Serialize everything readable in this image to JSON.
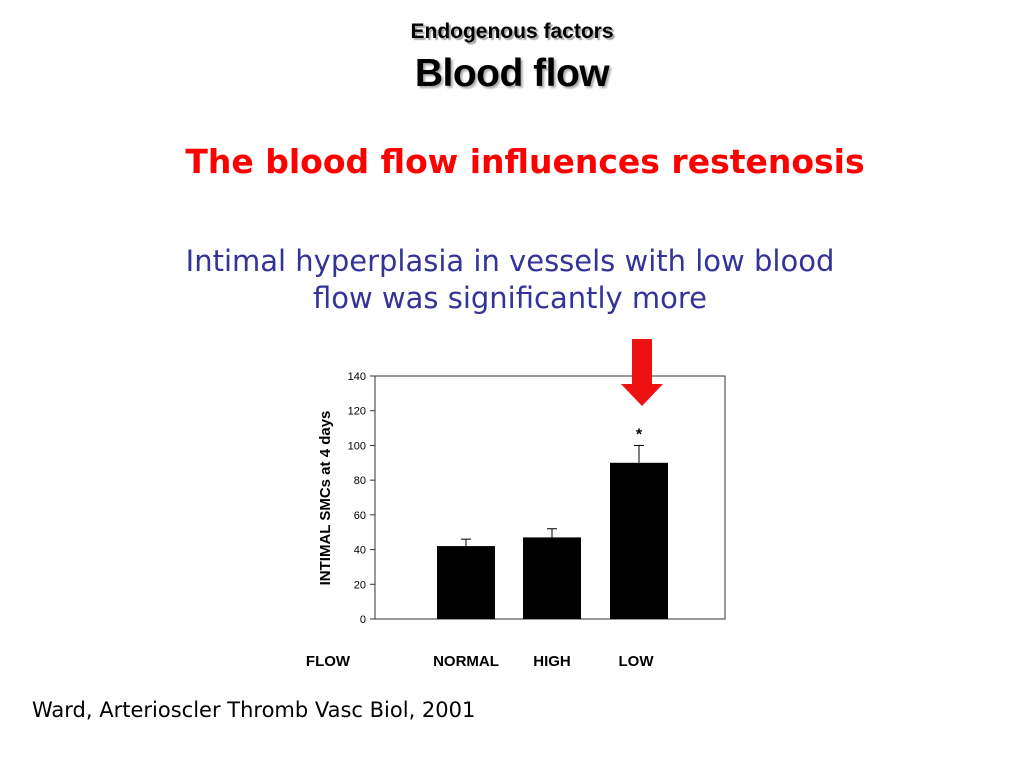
{
  "slide": {
    "supertitle": "Endogenous  factors",
    "title": "Blood flow",
    "headline": "The blood flow influences restenosis",
    "subheadline_line1": "Intimal hyperplasia in vessels with low blood",
    "subheadline_line2": "flow was significantly more",
    "citation": "Ward, Arterioscler Thromb Vasc Biol, 2001"
  },
  "chart_data": {
    "type": "bar",
    "xlabel": "FLOW",
    "ylabel": "INTIMAL SMCs at 4 days",
    "categories": [
      "NORMAL",
      "HIGH",
      "LOW"
    ],
    "values": [
      42,
      47,
      90
    ],
    "error": [
      4,
      5,
      10
    ],
    "ylim": [
      0,
      140
    ],
    "yticks": [
      0,
      20,
      40,
      60,
      80,
      100,
      120,
      140
    ],
    "significance_marker": "*",
    "significance_category": "LOW",
    "highlight_arrow_category": "LOW",
    "bar_color": "#000000",
    "arrow_color": "#ee1111",
    "grid": false
  }
}
